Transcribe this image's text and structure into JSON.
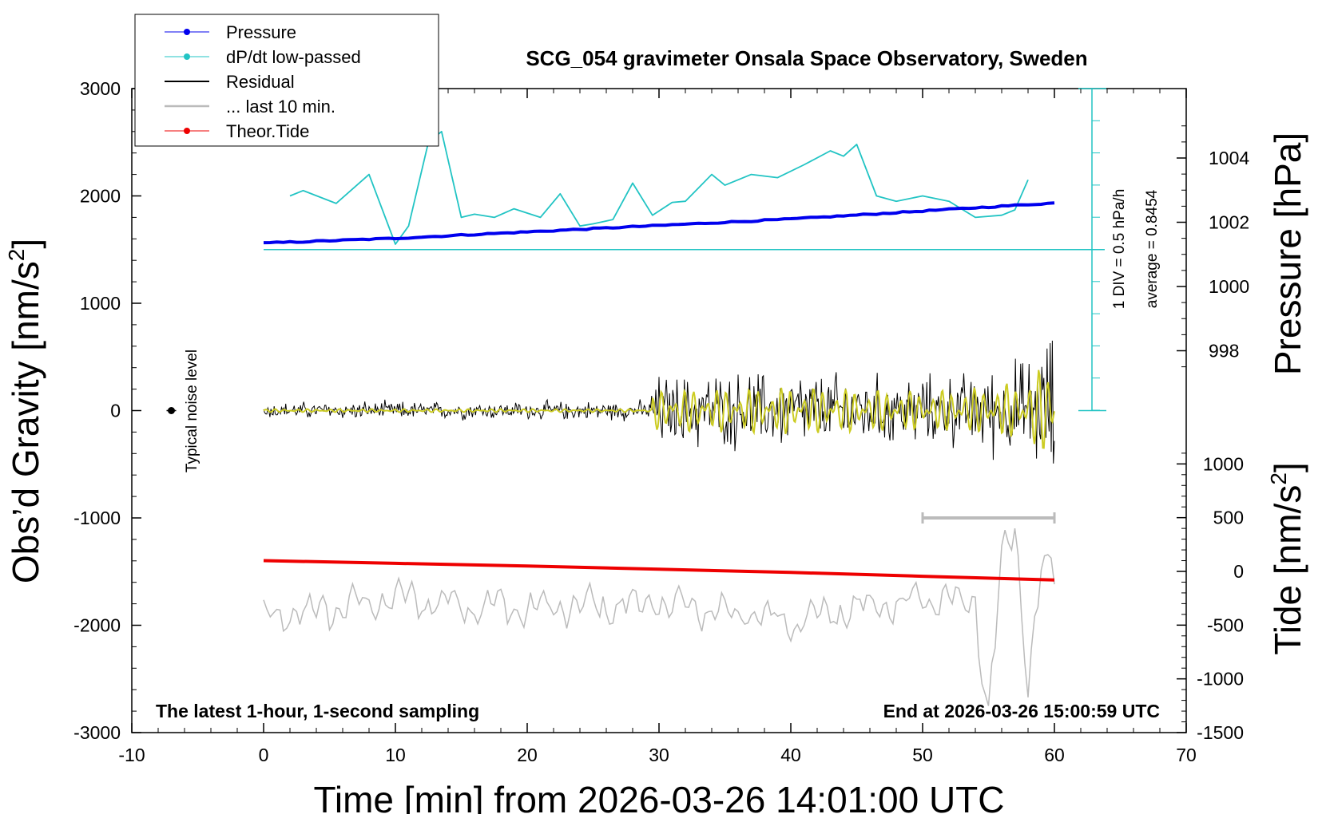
{
  "chart_data": {
    "type": "line",
    "title": "SCG_054 gravimeter Onsala Space Observatory, Sweden",
    "xlabel": "Time [min] from 2026-03-26 14:01:00 UTC",
    "ylabel_left": "Obs’d Gravity [nm/s",
    "ylabel_left_sup": "2",
    "ylabel_left_end": "]",
    "ylabel_right_top": "Pressure [hPa]",
    "ylabel_right_bottom": "Tide [nm/s",
    "ylabel_right_bottom_sup": "2",
    "ylabel_right_bottom_end": "]",
    "xlim": [
      -10,
      70
    ],
    "ylim": [
      -3000,
      3000
    ],
    "x_ticks": [
      "-10",
      "0",
      "10",
      "20",
      "30",
      "40",
      "50",
      "60",
      "70"
    ],
    "y_ticks_left": [
      "-3000",
      "-2000",
      "-1000",
      "0",
      "1000",
      "2000",
      "3000"
    ],
    "pressure_ticks": [
      "998",
      "1000",
      "1002",
      "1004"
    ],
    "tide_ticks": [
      "-1500",
      "-1000",
      "-500",
      "0",
      "500",
      "1000"
    ],
    "bottom_left_note": "The latest 1-hour, 1-second sampling",
    "bottom_right_note": "End at 2026-03-26 15:00:59 UTC",
    "noise_label": "Typical noise level",
    "scale_note_1": "1 DIV = 0.5 hPa/h",
    "scale_note_2": "average = 0.8454",
    "legend": [
      {
        "name": "Pressure",
        "color": "#0000ee",
        "marker": true
      },
      {
        "name": "dP/dt low-passed",
        "color": "#22c4c4",
        "marker": true
      },
      {
        "name": "Residual",
        "color": "#000000",
        "marker": false
      },
      {
        "name": "... last 10 min.",
        "color": "#bbbbbb",
        "marker": false
      },
      {
        "name": "Theor.Tide",
        "color": "#ee0000",
        "marker": true
      }
    ],
    "series": [
      {
        "name": "Pressure",
        "axis": "pressure_hPa",
        "x": [
          0,
          10,
          20,
          30,
          40,
          50,
          60
        ],
        "values": [
          1001.35,
          1001.5,
          1001.7,
          1001.9,
          1002.1,
          1002.35,
          1002.6
        ]
      },
      {
        "name": "dP/dt low-passed",
        "axis": "gravity_equivalent",
        "x": [
          2,
          3,
          5.5,
          8,
          10,
          11,
          12.5,
          13.5,
          15,
          16,
          17.5,
          19,
          21,
          22.5,
          24,
          25,
          26.5,
          28,
          29.5,
          31,
          32,
          34,
          35,
          37,
          39,
          41,
          43,
          44,
          45,
          46.5,
          48,
          50,
          52,
          54,
          56,
          57,
          58
        ],
        "values": [
          2000,
          2050,
          1930,
          2200,
          1550,
          1720,
          2500,
          2600,
          1800,
          1830,
          1800,
          1880,
          1800,
          2020,
          1720,
          1740,
          1780,
          2120,
          1820,
          1940,
          1950,
          2200,
          2100,
          2200,
          2170,
          2290,
          2420,
          2370,
          2480,
          2000,
          1950,
          2000,
          1950,
          1800,
          1820,
          1870,
          2150
        ]
      },
      {
        "name": "Residual",
        "axis": "gravity",
        "x": [
          0,
          10,
          20,
          29,
          30,
          35,
          40,
          45,
          50,
          55,
          58,
          59,
          60
        ],
        "amplitude": [
          100,
          110,
          110,
          120,
          450,
          450,
          500,
          450,
          400,
          500,
          650,
          900,
          1000
        ]
      },
      {
        "name": "... last 10 min.",
        "axis": "gravity",
        "x": [
          0,
          10,
          20,
          30,
          40,
          50,
          54,
          55,
          56,
          57,
          58,
          59,
          60
        ],
        "values": [
          -1950,
          -1750,
          -1850,
          -1800,
          -1950,
          -1750,
          -1800,
          -2800,
          -1500,
          -1100,
          -2500,
          -1500,
          -1550
        ]
      },
      {
        "name": "Theor.Tide",
        "axis": "tide",
        "x": [
          0,
          10,
          20,
          30,
          40,
          50,
          60
        ],
        "values": [
          100,
          75,
          50,
          20,
          -10,
          -45,
          -80
        ]
      }
    ],
    "dPdt_zero_level": 1500,
    "last10_bar": {
      "start": 50,
      "end": 60,
      "value": -1000
    }
  }
}
